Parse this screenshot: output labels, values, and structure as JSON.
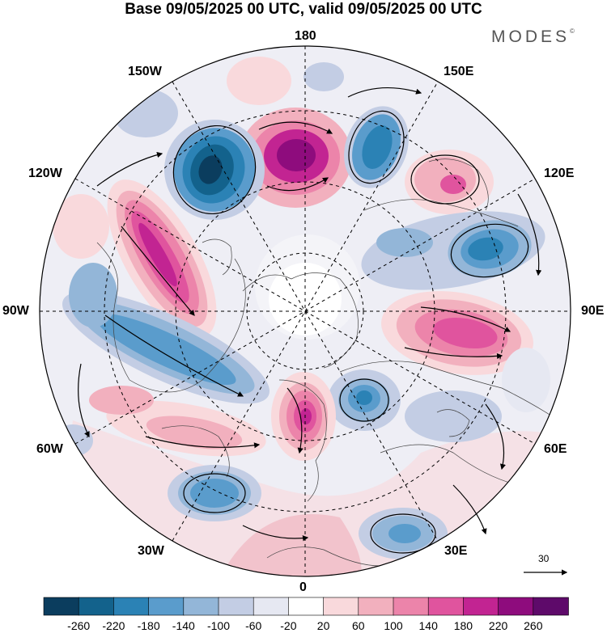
{
  "title": "Base 09/05/2025 00 UTC, valid 09/05/2025 00 UTC",
  "brand": "MODES",
  "brand_mark": "©",
  "longitude_labels": {
    "top": "180",
    "bottom": "0",
    "left": "90W",
    "right": "90E",
    "upper_left_1": "150W",
    "upper_left_2": "120W",
    "upper_right_1": "150E",
    "upper_right_2": "120E",
    "lower_left_1": "60W",
    "lower_left_2": "30W",
    "lower_right_1": "60E",
    "lower_right_2": "30E"
  },
  "reference_vector": {
    "label": "30"
  },
  "colorbar": {
    "ticks": [
      "-260",
      "-220",
      "-180",
      "-140",
      "-100",
      "-60",
      "-20",
      "20",
      "60",
      "100",
      "140",
      "180",
      "220",
      "260"
    ],
    "colors": [
      "#0b3d5e",
      "#13628c",
      "#2b82b5",
      "#5a9ccc",
      "#93b6d8",
      "#c3cde4",
      "#e6e8f2",
      "#ffffff",
      "#f9d9dc",
      "#f2b0be",
      "#ec84aa",
      "#e0549e",
      "#c22492",
      "#8e0c7d",
      "#5e0a6a"
    ]
  },
  "anomaly_features": [
    {
      "id": "pink-dateline",
      "level": "220",
      "color": "#8e0c7d"
    },
    {
      "id": "blue-150w",
      "level": "-220",
      "color": "#13628c"
    },
    {
      "id": "blue-160e",
      "level": "-140",
      "color": "#2b82b5"
    },
    {
      "id": "pink-130e",
      "level": "140",
      "color": "#e0549e"
    },
    {
      "id": "blue-105e",
      "level": "-140",
      "color": "#2b82b5"
    },
    {
      "id": "pink-100w",
      "level": "220",
      "color": "#c22492"
    },
    {
      "id": "blue-80w",
      "level": "-140",
      "color": "#5a9ccc"
    },
    {
      "id": "pink-80e",
      "level": "180",
      "color": "#e0549e"
    },
    {
      "id": "blue-45e",
      "level": "-140",
      "color": "#2b82b5"
    },
    {
      "id": "pink-10w",
      "level": "220",
      "color": "#c22492"
    },
    {
      "id": "blue-35w",
      "level": "-140",
      "color": "#5a9ccc"
    },
    {
      "id": "blue-30e",
      "level": "-100",
      "color": "#93b6d8"
    }
  ]
}
